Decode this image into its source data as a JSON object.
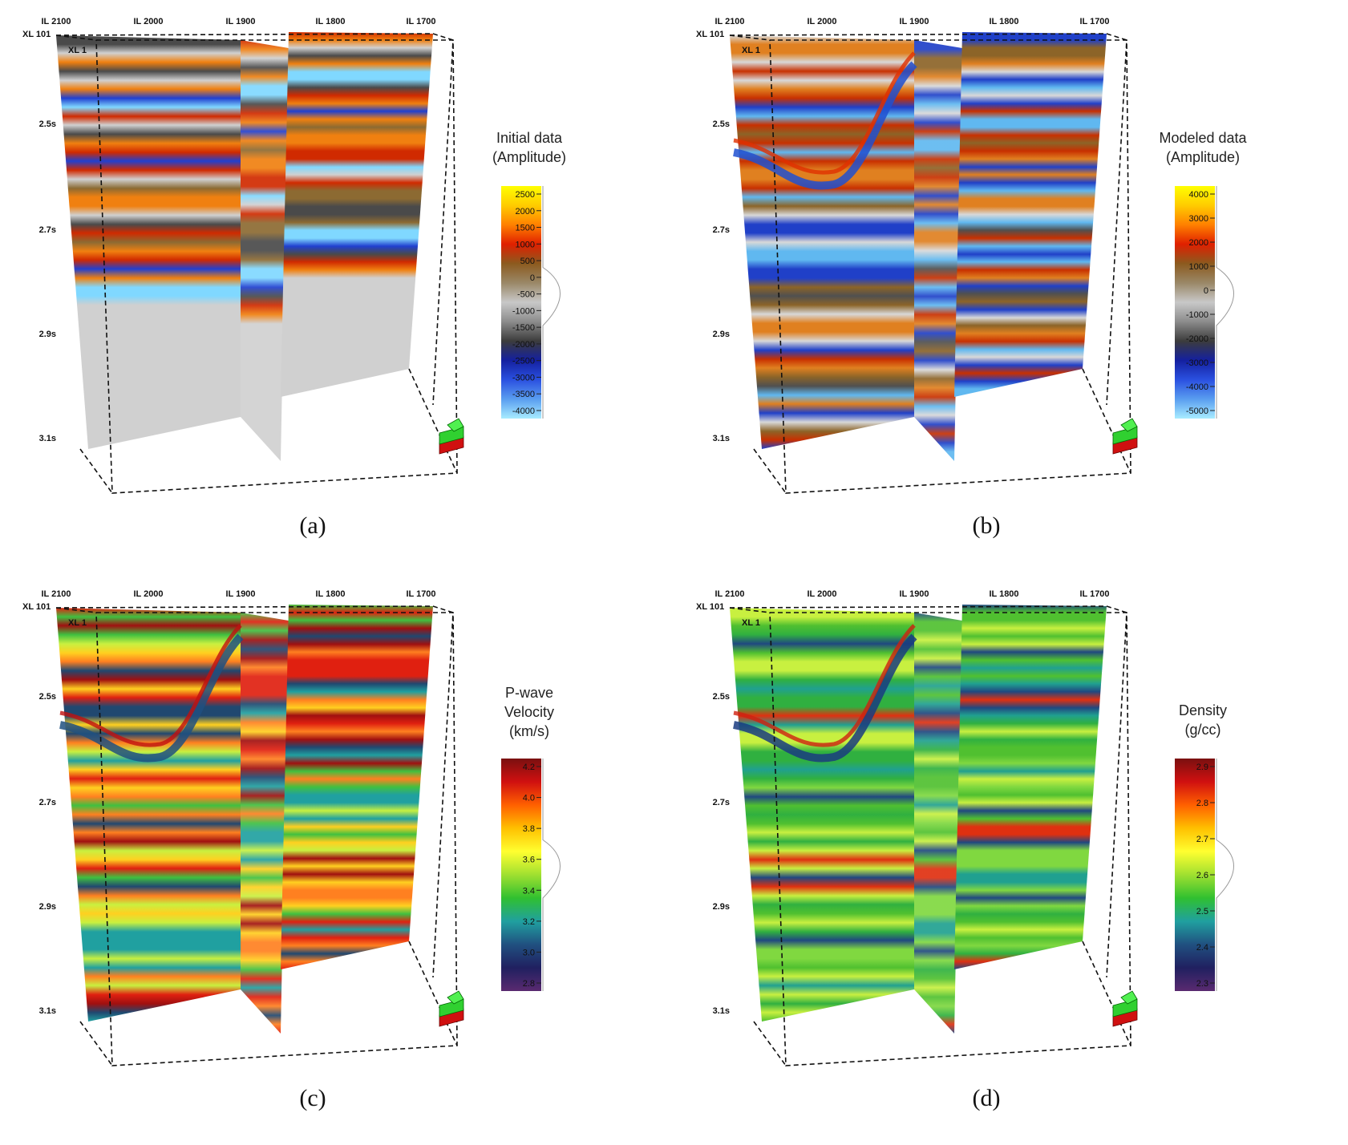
{
  "panels": [
    {
      "id": "a",
      "caption": "(a)",
      "il_labels": [
        "IL 2100",
        "IL 2000",
        "IL 1900",
        "IL 1800",
        "IL 1700"
      ],
      "xl_labels": [
        "XL 101",
        "XL 1"
      ],
      "time_labels": [
        "2.5s",
        "2.7s",
        "2.9s",
        "3.1s"
      ],
      "colorbar": {
        "title": [
          "Initial data",
          "(Amplitude)"
        ],
        "ticks": [
          "2500",
          "2000",
          "1500",
          "1000",
          "500",
          "0",
          "-500",
          "-1000",
          "-1500",
          "-2000",
          "-2500",
          "-3000",
          "-3500",
          "-4000"
        ],
        "colors": [
          "#ffff00",
          "#ffcc00",
          "#ff8000",
          "#e02000",
          "#8c5a1e",
          "#9a8868",
          "#c8c8c8",
          "#8c8c8c",
          "#3c3c3c",
          "#1420a0",
          "#2a50e0",
          "#5a9ef0",
          "#a8ecff"
        ]
      },
      "slice_colors": [
        "#d0d0d0",
        "#d02a00",
        "#f08010",
        "#2040d0",
        "#80d8ff",
        "#8c6a32",
        "#4a4a4a"
      ]
    },
    {
      "id": "b",
      "caption": "(b)",
      "il_labels": [
        "IL 2100",
        "IL 2000",
        "IL 1900",
        "IL 1800",
        "IL 1700"
      ],
      "xl_labels": [
        "XL 101",
        "XL 1"
      ],
      "time_labels": [
        "2.5s",
        "2.7s",
        "2.9s",
        "3.1s"
      ],
      "colorbar": {
        "title": [
          "Modeled data",
          "(Amplitude)"
        ],
        "ticks": [
          "4000",
          "3000",
          "2000",
          "1000",
          "0",
          "-1000",
          "-2000",
          "-3000",
          "-4000",
          "-5000"
        ],
        "colors": [
          "#ffff00",
          "#ffcc00",
          "#ff8000",
          "#e02000",
          "#8c5a1e",
          "#9a8868",
          "#c8c8c8",
          "#8c8c8c",
          "#3c3c3c",
          "#1420a0",
          "#2a50e0",
          "#5a9ef0",
          "#a8ecff"
        ]
      },
      "slice_colors": [
        "#d8d8d8",
        "#c83000",
        "#8c6428",
        "#2040c8",
        "#60b8f0",
        "#e08020",
        "#505050"
      ]
    },
    {
      "id": "c",
      "caption": "(c)",
      "il_labels": [
        "IL 2100",
        "IL 2000",
        "IL 1900",
        "IL 1800",
        "IL 1700"
      ],
      "xl_labels": [
        "XL 101",
        "XL 1"
      ],
      "time_labels": [
        "2.5s",
        "2.7s",
        "2.9s",
        "3.1s"
      ],
      "colorbar": {
        "title": [
          "P-wave",
          "Velocity",
          "(km/s)"
        ],
        "ticks": [
          "4.2",
          "4.0",
          "3.8",
          "3.6",
          "3.4",
          "3.2",
          "3.0",
          "2.8"
        ],
        "colors": [
          "#7a1010",
          "#d01010",
          "#ff6000",
          "#ffc000",
          "#ffff30",
          "#a0e030",
          "#30c030",
          "#20a0a0",
          "#205080",
          "#202060",
          "#5a2a70"
        ]
      },
      "slice_colors": [
        "#ffd020",
        "#ff8020",
        "#e02010",
        "#a01010",
        "#c8f040",
        "#40c040",
        "#20a0a0",
        "#204870"
      ]
    },
    {
      "id": "d",
      "caption": "(d)",
      "il_labels": [
        "IL 2100",
        "IL 2000",
        "IL 1900",
        "IL 1800",
        "IL 1700"
      ],
      "xl_labels": [
        "XL 101",
        "XL 1"
      ],
      "time_labels": [
        "2.5s",
        "2.7s",
        "2.9s",
        "3.1s"
      ],
      "colorbar": {
        "title": [
          "Density",
          "(g/cc)"
        ],
        "ticks": [
          "2.9",
          "2.8",
          "2.7",
          "2.6",
          "2.5",
          "2.4",
          "2.3"
        ],
        "colors": [
          "#7a1010",
          "#d01010",
          "#ff6000",
          "#ffc000",
          "#ffff30",
          "#a0e030",
          "#30c030",
          "#20a0a0",
          "#205080",
          "#202060",
          "#5a2a70"
        ]
      },
      "slice_colors": [
        "#50c030",
        "#80d840",
        "#30b040",
        "#20a090",
        "#c8f040",
        "#e03010",
        "#204880"
      ]
    }
  ]
}
